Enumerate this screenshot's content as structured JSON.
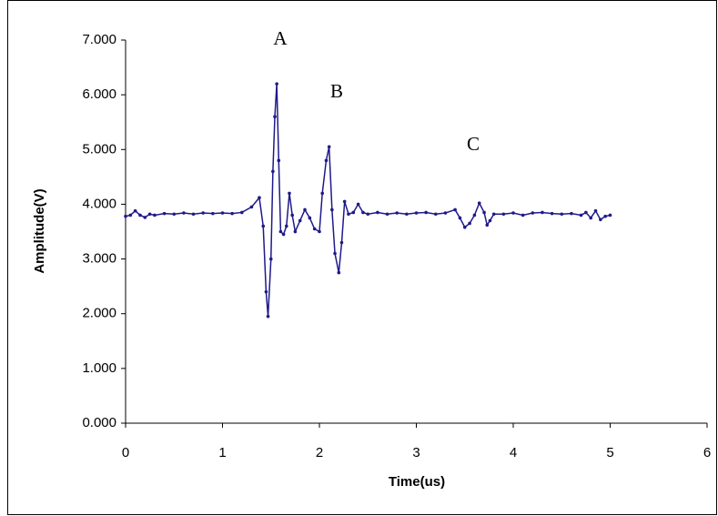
{
  "chart_data": {
    "type": "line",
    "xlabel": "Time(us)",
    "ylabel": "Amplitude(V)",
    "annotations": [
      "A",
      "B",
      "C"
    ],
    "xlim": [
      0,
      6
    ],
    "xticks": [
      0,
      1,
      2,
      3,
      4,
      5,
      6
    ],
    "ylim": [
      0,
      7
    ],
    "yticks": [
      {
        "value": 0,
        "label": "0.000"
      },
      {
        "value": 1,
        "label": "1.000"
      },
      {
        "value": 2,
        "label": "2.000"
      },
      {
        "value": 3,
        "label": "3.000"
      },
      {
        "value": 4,
        "label": "4.000"
      },
      {
        "value": 5,
        "label": "5.000"
      },
      {
        "value": 6,
        "label": "6.000"
      },
      {
        "value": 7,
        "label": "7.000"
      }
    ],
    "grid": false,
    "series": [
      {
        "color": "#1f1a8a",
        "x": [
          0,
          0.05,
          0.1,
          0.15,
          0.2,
          0.25,
          0.3,
          0.4,
          0.5,
          0.6,
          0.7,
          0.8,
          0.9,
          1.0,
          1.1,
          1.2,
          1.3,
          1.38,
          1.42,
          1.45,
          1.47,
          1.5,
          1.52,
          1.54,
          1.56,
          1.58,
          1.6,
          1.63,
          1.66,
          1.69,
          1.72,
          1.75,
          1.8,
          1.85,
          1.9,
          1.95,
          2.0,
          2.03,
          2.07,
          2.1,
          2.13,
          2.16,
          2.2,
          2.23,
          2.26,
          2.3,
          2.35,
          2.4,
          2.45,
          2.5,
          2.6,
          2.7,
          2.8,
          2.9,
          3.0,
          3.1,
          3.2,
          3.3,
          3.4,
          3.45,
          3.5,
          3.55,
          3.6,
          3.65,
          3.7,
          3.73,
          3.76,
          3.8,
          3.9,
          4.0,
          4.1,
          4.2,
          4.3,
          4.4,
          4.5,
          4.6,
          4.7,
          4.75,
          4.8,
          4.85,
          4.9,
          4.95,
          5.0
        ],
        "values": [
          3.78,
          3.8,
          3.88,
          3.8,
          3.76,
          3.82,
          3.8,
          3.83,
          3.82,
          3.84,
          3.82,
          3.84,
          3.83,
          3.84,
          3.83,
          3.85,
          3.95,
          4.12,
          3.6,
          2.4,
          1.95,
          3.0,
          4.6,
          5.6,
          6.2,
          4.8,
          3.5,
          3.45,
          3.6,
          4.2,
          3.8,
          3.5,
          3.7,
          3.9,
          3.75,
          3.55,
          3.5,
          4.2,
          4.8,
          5.05,
          3.9,
          3.1,
          2.75,
          3.3,
          4.05,
          3.82,
          3.85,
          4.0,
          3.85,
          3.82,
          3.85,
          3.82,
          3.84,
          3.82,
          3.84,
          3.85,
          3.82,
          3.84,
          3.9,
          3.75,
          3.58,
          3.65,
          3.8,
          4.02,
          3.85,
          3.62,
          3.7,
          3.82,
          3.82,
          3.84,
          3.8,
          3.84,
          3.85,
          3.83,
          3.82,
          3.83,
          3.8,
          3.85,
          3.75,
          3.88,
          3.72,
          3.78,
          3.8
        ]
      }
    ]
  }
}
